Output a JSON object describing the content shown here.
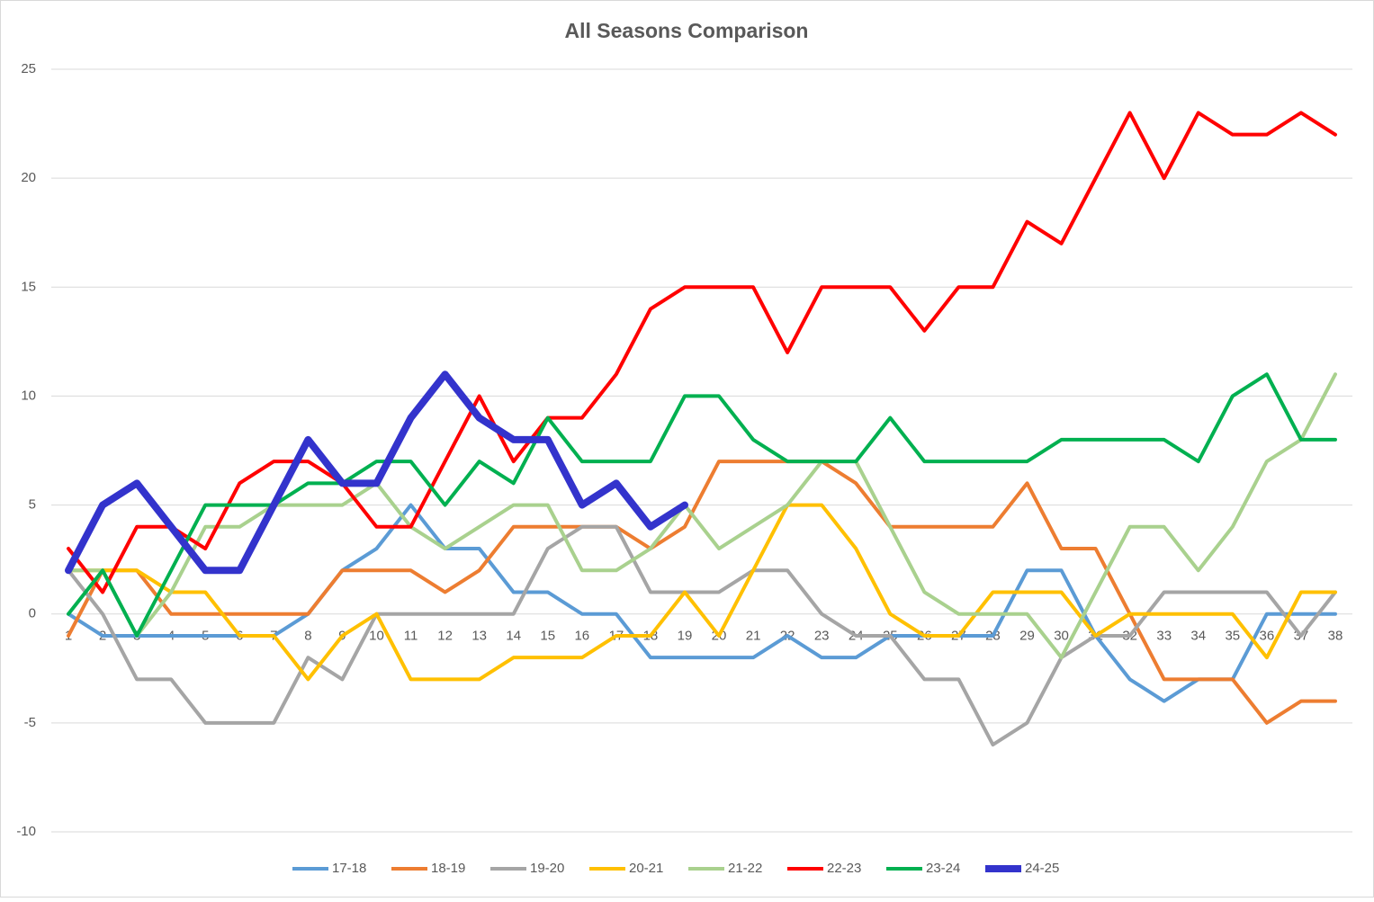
{
  "chart_data": {
    "type": "line",
    "title": "All Seasons Comparison",
    "categories": [
      "1",
      "2",
      "3",
      "4",
      "5",
      "6",
      "7",
      "8",
      "9",
      "10",
      "11",
      "12",
      "13",
      "14",
      "15",
      "16",
      "17",
      "18",
      "19",
      "20",
      "21",
      "22",
      "23",
      "24",
      "25",
      "26",
      "27",
      "28",
      "29",
      "30",
      "31",
      "32",
      "33",
      "34",
      "35",
      "36",
      "37",
      "38"
    ],
    "series": [
      {
        "name": "17-18",
        "color": "#5b9bd5",
        "width": 4,
        "values": [
          0,
          -1,
          -1,
          -1,
          -1,
          -1,
          -1,
          0,
          2,
          3,
          5,
          3,
          3,
          1,
          1,
          0,
          0,
          -2,
          -2,
          -2,
          -2,
          -1,
          -2,
          -2,
          -1,
          -1,
          -1,
          -1,
          2,
          2,
          -1,
          -3,
          -4,
          -3,
          -3,
          0,
          0,
          0
        ]
      },
      {
        "name": "18-19",
        "color": "#ed7d31",
        "width": 4,
        "values": [
          -1,
          2,
          2,
          0,
          0,
          0,
          0,
          0,
          2,
          2,
          2,
          1,
          2,
          4,
          4,
          4,
          4,
          3,
          4,
          7,
          7,
          7,
          7,
          6,
          4,
          4,
          4,
          4,
          6,
          3,
          3,
          0,
          -3,
          -3,
          -3,
          -5,
          -4,
          -4
        ]
      },
      {
        "name": "19-20",
        "color": "#a5a5a5",
        "width": 4,
        "values": [
          2,
          0,
          -3,
          -3,
          -5,
          -5,
          -5,
          -2,
          -3,
          0,
          0,
          0,
          0,
          0,
          3,
          4,
          4,
          1,
          1,
          1,
          2,
          2,
          0,
          -1,
          -1,
          -3,
          -3,
          -6,
          -5,
          -2,
          -1,
          -1,
          1,
          1,
          1,
          1,
          -1,
          1
        ]
      },
      {
        "name": "20-21",
        "color": "#ffc000",
        "width": 4,
        "values": [
          2,
          2,
          2,
          1,
          1,
          -1,
          -1,
          -3,
          -1,
          0,
          -3,
          -3,
          -3,
          -2,
          -2,
          -2,
          -1,
          -1,
          1,
          -1,
          2,
          5,
          5,
          3,
          0,
          -1,
          -1,
          1,
          1,
          1,
          -1,
          0,
          0,
          0,
          0,
          -2,
          1,
          1
        ]
      },
      {
        "name": "21-22",
        "color": "#a9d18e",
        "width": 4,
        "values": [
          2,
          2,
          -1,
          1,
          4,
          4,
          5,
          5,
          5,
          6,
          4,
          3,
          4,
          5,
          5,
          2,
          2,
          3,
          5,
          3,
          4,
          5,
          7,
          7,
          4,
          1,
          0,
          0,
          0,
          -2,
          1,
          4,
          4,
          2,
          4,
          7,
          8,
          11
        ]
      },
      {
        "name": "22-23",
        "color": "#ff0000",
        "width": 4,
        "values": [
          3,
          1,
          4,
          4,
          3,
          6,
          7,
          7,
          6,
          4,
          4,
          7,
          10,
          7,
          9,
          9,
          11,
          14,
          15,
          15,
          15,
          12,
          15,
          15,
          15,
          13,
          15,
          15,
          18,
          17,
          20,
          23,
          20,
          23,
          22,
          22,
          23,
          22
        ]
      },
      {
        "name": "23-24",
        "color": "#00b050",
        "width": 4,
        "values": [
          0,
          2,
          -1,
          2,
          5,
          5,
          5,
          6,
          6,
          7,
          7,
          5,
          7,
          6,
          9,
          7,
          7,
          7,
          10,
          10,
          8,
          7,
          7,
          7,
          9,
          7,
          7,
          7,
          7,
          8,
          8,
          8,
          8,
          7,
          10,
          11,
          8,
          8
        ]
      },
      {
        "name": "24-25",
        "color": "#3333cc",
        "width": 8,
        "values": [
          2,
          5,
          6,
          4,
          2,
          2,
          5,
          8,
          6,
          6,
          9,
          11,
          9,
          8,
          8,
          5,
          6,
          4,
          5,
          null,
          null,
          null,
          null,
          null,
          null,
          null,
          null,
          null,
          null,
          null,
          null,
          null,
          null,
          null,
          null,
          null,
          null,
          null
        ]
      }
    ],
    "ylim": [
      -10,
      25
    ],
    "yticks": [
      -10,
      -5,
      0,
      5,
      10,
      15,
      20,
      25
    ],
    "grid": true,
    "legend": "bottom"
  }
}
